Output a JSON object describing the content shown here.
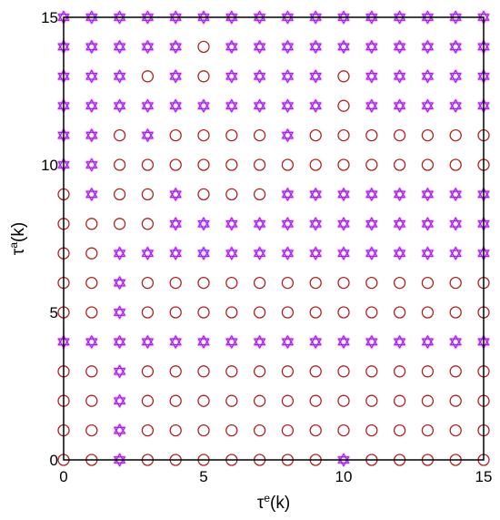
{
  "chart_data": {
    "type": "scatter",
    "xlabel": {
      "base": "τ",
      "sup": "e",
      "rest": "(k)"
    },
    "ylabel": {
      "base": "τ",
      "sup": "a",
      "rest": "(k)"
    },
    "xlim": [
      0,
      15
    ],
    "ylim": [
      0,
      15
    ],
    "xticks": [
      0,
      5,
      10,
      15
    ],
    "yticks": [
      0,
      5,
      10,
      15
    ],
    "grid": false,
    "legend": "none",
    "markers": {
      "O": "circle",
      "S": "star"
    },
    "colors": {
      "circle": "#b22222",
      "star": "#a020f0",
      "star_halo": "#f2c6f2",
      "frame": "#000000"
    },
    "grid_rows_top_to_bottom": [
      "SSSSSSSSSSSSSSSS",
      "SSSSSOSSSSSSSSSS",
      "SSSOSOSSSSOSSSSS",
      "SSSSSSSSSSOSSSSS",
      "SSOSOOOOSOOOOOOO",
      "SSOOOOOOOOOOOOOO",
      "OSOOSOOOSSSSSSSS",
      "OOOOSSSSSSSSSSSS",
      "OOSSSSSSSSSSSSSS",
      "OOSOOOOOOOOOOOOO",
      "OOSOOOOOOOOOOOOO",
      "SSSSSSSSSSSSSSSS",
      "OOSOOOOOOOOOOOOO",
      "OOSOOOOOOOOOOOOO",
      "OOSOOOOOOOOOOOOO",
      "OOSOOOOOOOSOOOOO"
    ]
  }
}
